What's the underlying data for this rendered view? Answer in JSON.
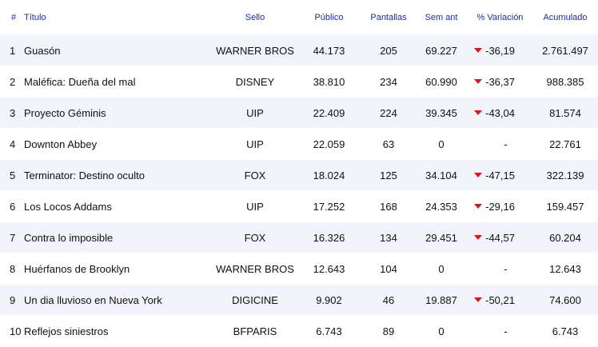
{
  "headers": {
    "num": "#",
    "title": "Título",
    "sello": "Sello",
    "publico": "Público",
    "pantallas": "Pantallas",
    "sem_ant": "Sem ant",
    "variacion": "% Variación",
    "acumulado": "Acumulado"
  },
  "rows": [
    {
      "num": "1",
      "title": "Guasón",
      "sello": "WARNER BROS",
      "publico": "44.173",
      "pantallas": "205",
      "sem_ant": "69.227",
      "variacion": "-36,19",
      "trend": "down",
      "acumulado": "2.761.497"
    },
    {
      "num": "2",
      "title": "Maléfica: Dueña del mal",
      "sello": "DISNEY",
      "publico": "38.810",
      "pantallas": "234",
      "sem_ant": "60.990",
      "variacion": "-36,37",
      "trend": "down",
      "acumulado": "988.385"
    },
    {
      "num": "3",
      "title": "Proyecto Géminis",
      "sello": "UIP",
      "publico": "22.409",
      "pantallas": "224",
      "sem_ant": "39.345",
      "variacion": "-43,04",
      "trend": "down",
      "acumulado": "81.574"
    },
    {
      "num": "4",
      "title": "Downton Abbey",
      "sello": "UIP",
      "publico": "22.059",
      "pantallas": "63",
      "sem_ant": "0",
      "variacion": "-",
      "trend": "none",
      "acumulado": "22.761"
    },
    {
      "num": "5",
      "title": "Terminator: Destino oculto",
      "sello": "FOX",
      "publico": "18.024",
      "pantallas": "125",
      "sem_ant": "34.104",
      "variacion": "-47,15",
      "trend": "down",
      "acumulado": "322.139"
    },
    {
      "num": "6",
      "title": "Los Locos Addams",
      "sello": "UIP",
      "publico": "17.252",
      "pantallas": "168",
      "sem_ant": "24.353",
      "variacion": "-29,16",
      "trend": "down",
      "acumulado": "159.457"
    },
    {
      "num": "7",
      "title": "Contra lo imposible",
      "sello": "FOX",
      "publico": "16.326",
      "pantallas": "134",
      "sem_ant": "29.451",
      "variacion": "-44,57",
      "trend": "down",
      "acumulado": "60.204"
    },
    {
      "num": "8",
      "title": "Huérfanos de Brooklyn",
      "sello": "WARNER BROS",
      "publico": "12.643",
      "pantallas": "104",
      "sem_ant": "0",
      "variacion": "-",
      "trend": "none",
      "acumulado": "12.643"
    },
    {
      "num": "9",
      "title": "Un dia lluvioso en Nueva York",
      "sello": "DIGICINE",
      "publico": "9.902",
      "pantallas": "46",
      "sem_ant": "19.887",
      "variacion": "-50,21",
      "trend": "down",
      "acumulado": "74.600"
    },
    {
      "num": "10",
      "title": "Reflejos siniestros",
      "sello": "BFPARIS",
      "publico": "6.743",
      "pantallas": "89",
      "sem_ant": "0",
      "variacion": "-",
      "trend": "none",
      "acumulado": "6.743"
    }
  ],
  "colors": {
    "header_text": "#1a2ca8",
    "stripe": "#f2f3fb",
    "down_arrow": "#d7191c"
  },
  "icons": {
    "down": "triangle-down-icon"
  }
}
